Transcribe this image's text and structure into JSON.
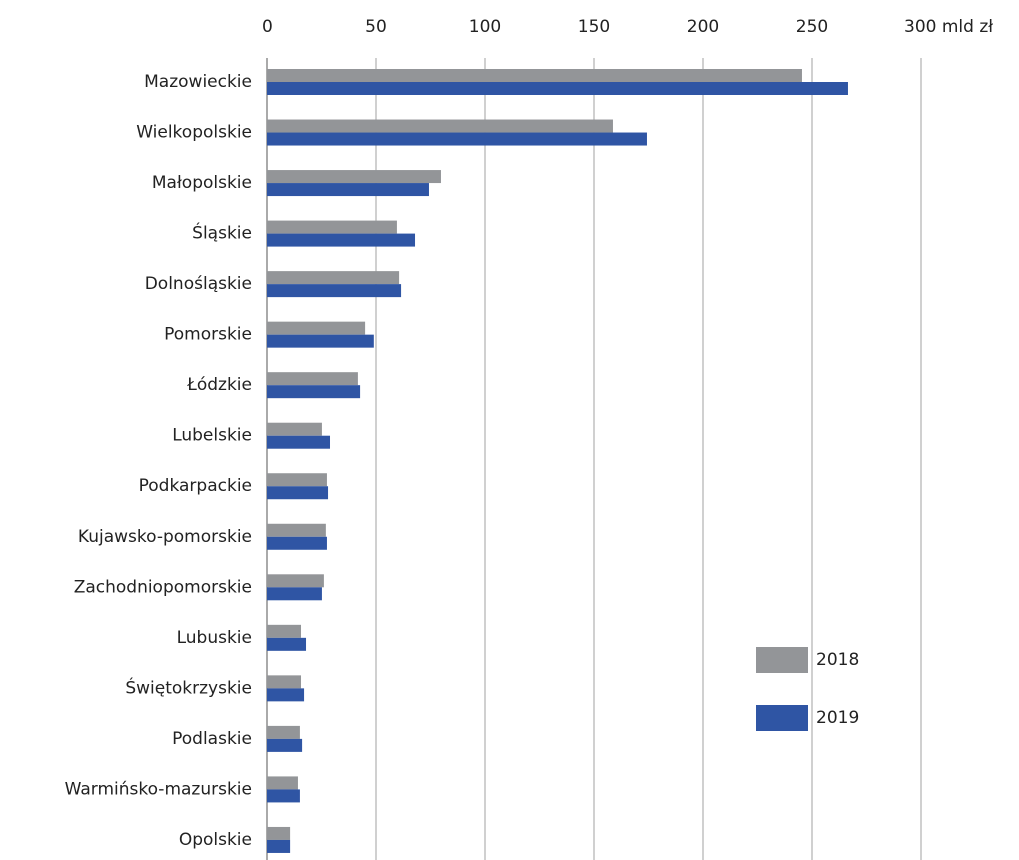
{
  "chart_data": {
    "type": "barh",
    "categories": [
      "Mazowieckie",
      "Wielkopolskie",
      "Małopolskie",
      "Śląskie",
      "Dolnośląskie",
      "Pomorskie",
      "Łódzkie",
      "Lubelskie",
      "Podkarpackie",
      "Kujawsko-pomorskie",
      "Zachodniopomorskie",
      "Lubuskie",
      "Świętokrzyskie",
      "Podlaskie",
      "Warmińsko-mazurskie",
      "Opolskie"
    ],
    "series": [
      {
        "name": "2018",
        "color": "#939598",
        "values": [
          245.4,
          158.7,
          79.8,
          59.6,
          60.6,
          45,
          41.7,
          25.2,
          27.5,
          27,
          26.1,
          15.6,
          15.6,
          15.1,
          14.2,
          10.6
        ]
      },
      {
        "name": "2019",
        "color": "#2f55a4",
        "values": [
          266.5,
          174.3,
          74.3,
          67.9,
          61.5,
          49,
          42.7,
          28.9,
          28,
          27.5,
          25.2,
          17.9,
          17,
          16.1,
          15.1,
          10.6
        ]
      }
    ],
    "xlim": [
      0,
      300
    ],
    "xticks": [
      0,
      50,
      100,
      150,
      200,
      250,
      {
        "value": 300,
        "label": "300 mld zł"
      }
    ],
    "grid": true
  }
}
